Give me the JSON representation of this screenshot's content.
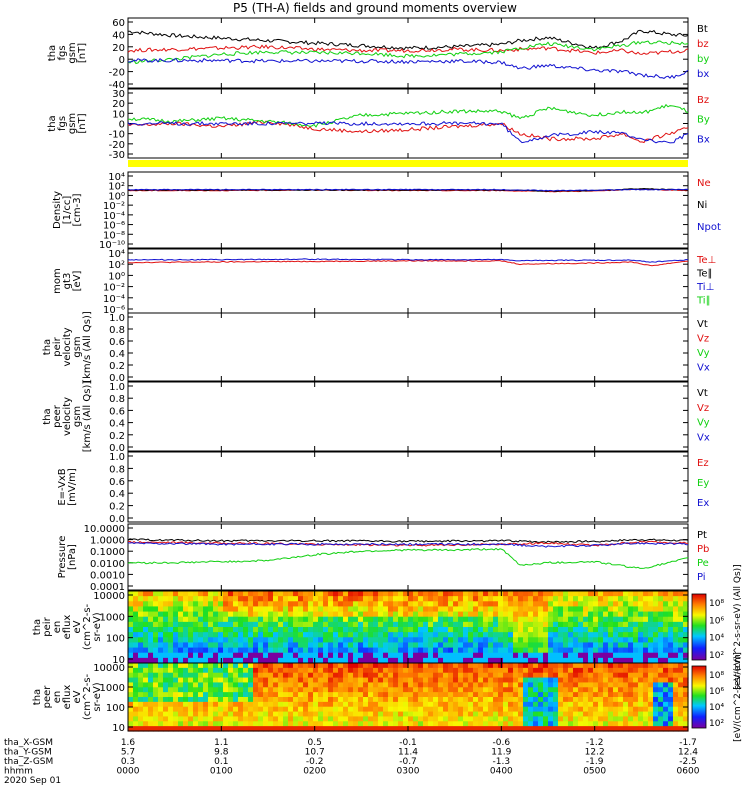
{
  "title": "P5 (TH-A) fields and ground moments overview",
  "date_label": "2020 Sep 01",
  "colors": {
    "black": "#000000",
    "red": "#e01010",
    "green": "#10d010",
    "blue": "#1010d0",
    "yellow": "#ffff00"
  },
  "chart_data": [
    {
      "type": "line",
      "ylabel": [
        "tha",
        "fgs",
        "gsm",
        "[nT]"
      ],
      "ytick_labels": [
        "60",
        "40",
        "20",
        "0",
        "-20",
        "-40"
      ],
      "ylim": [
        -40,
        60
      ],
      "legend": [
        {
          "name": "Bt",
          "color": "black"
        },
        {
          "name": "bz",
          "color": "red"
        },
        {
          "name": "by",
          "color": "green"
        },
        {
          "name": "bx",
          "color": "blue"
        }
      ],
      "series": [
        {
          "name": "Bt",
          "color": "black",
          "x": [
            0,
            50,
            100,
            150,
            200,
            250,
            300,
            350,
            400,
            420,
            450,
            500,
            530,
            550,
            580,
            600
          ],
          "y": [
            45,
            38,
            34,
            30,
            26,
            22,
            18,
            20,
            24,
            30,
            35,
            18,
            30,
            46,
            40,
            38
          ]
        },
        {
          "name": "bz",
          "color": "red",
          "x": [
            0,
            50,
            100,
            150,
            200,
            250,
            300,
            350,
            400,
            420,
            450,
            500,
            530,
            550,
            580,
            600
          ],
          "y": [
            14,
            16,
            18,
            20,
            16,
            14,
            14,
            16,
            14,
            16,
            18,
            10,
            14,
            8,
            12,
            14
          ]
        },
        {
          "name": "by",
          "color": "green",
          "x": [
            0,
            50,
            100,
            150,
            200,
            250,
            300,
            350,
            400,
            420,
            450,
            500,
            530,
            550,
            580,
            600
          ],
          "y": [
            -5,
            0,
            8,
            12,
            10,
            10,
            5,
            8,
            12,
            18,
            25,
            16,
            22,
            28,
            26,
            26
          ]
        },
        {
          "name": "bx",
          "color": "blue",
          "x": [
            0,
            50,
            100,
            150,
            200,
            250,
            300,
            350,
            400,
            420,
            450,
            500,
            530,
            550,
            580,
            600
          ],
          "y": [
            -2,
            -2,
            -2,
            -3,
            -3,
            -3,
            -4,
            -3,
            -5,
            -15,
            -10,
            -18,
            -20,
            -25,
            -30,
            -20
          ]
        }
      ]
    },
    {
      "type": "line",
      "ylabel": [
        "tha",
        "fgs",
        "gsm",
        "[nT]"
      ],
      "ytick_labels": [
        "30",
        "20",
        "10",
        "0",
        "-10",
        "-20",
        "-30"
      ],
      "ylim": [
        -30,
        30
      ],
      "legend": [
        {
          "name": "Bz",
          "color": "red"
        },
        {
          "name": "By",
          "color": "green"
        },
        {
          "name": "Bx",
          "color": "blue"
        }
      ],
      "series": [
        {
          "name": "Bz",
          "color": "red",
          "x": [
            0,
            50,
            100,
            150,
            200,
            250,
            300,
            350,
            400,
            420,
            450,
            500,
            530,
            550,
            580,
            600
          ],
          "y": [
            -2,
            0,
            -3,
            2,
            -5,
            -8,
            -6,
            -3,
            0,
            -10,
            -15,
            -15,
            -10,
            -18,
            -10,
            -5
          ]
        },
        {
          "name": "By",
          "color": "green",
          "x": [
            0,
            50,
            100,
            150,
            200,
            250,
            300,
            350,
            400,
            420,
            450,
            500,
            530,
            550,
            580,
            600
          ],
          "y": [
            5,
            2,
            5,
            2,
            -2,
            8,
            10,
            12,
            12,
            5,
            15,
            8,
            12,
            10,
            18,
            12
          ]
        },
        {
          "name": "Bx",
          "color": "blue",
          "x": [
            0,
            50,
            100,
            150,
            200,
            250,
            300,
            350,
            400,
            420,
            450,
            500,
            530,
            550,
            580,
            600
          ],
          "y": [
            0,
            0,
            0,
            0,
            0,
            0,
            0,
            0,
            0,
            -18,
            -12,
            -8,
            -10,
            -15,
            -20,
            -10
          ]
        }
      ]
    },
    {
      "type": "line",
      "ylabel": [
        "Density",
        "[1/cc]",
        "[cm-3]"
      ],
      "ytick_labels": [
        "10⁴",
        "10²",
        "10⁰",
        "10⁻²",
        "10⁻⁴",
        "10⁻⁶",
        "10⁻⁸",
        "10⁻¹⁰"
      ],
      "ylim_log10": [
        -10,
        4
      ],
      "legend": [
        {
          "name": "Ne",
          "color": "red"
        },
        {
          "name": "Ni",
          "color": "black"
        },
        {
          "name": "Npot",
          "color": "blue"
        }
      ],
      "series": [
        {
          "name": "Ne",
          "color": "red",
          "x": [
            0,
            100,
            200,
            300,
            400,
            450,
            500,
            550,
            600
          ],
          "y_log10": [
            1.0,
            1.0,
            1.1,
            1.0,
            1.0,
            0.8,
            0.9,
            1.3,
            1.0
          ]
        },
        {
          "name": "Ni",
          "color": "black",
          "x": [
            0,
            100,
            200,
            300,
            400,
            450,
            500,
            550,
            600
          ],
          "y_log10": [
            1.1,
            1.1,
            1.1,
            1.1,
            1.1,
            0.9,
            1.0,
            1.4,
            1.1
          ]
        },
        {
          "name": "Npot",
          "color": "blue",
          "x": [
            0,
            100,
            200,
            300,
            400,
            450,
            500,
            550,
            600
          ],
          "y_log10": [
            1.2,
            1.2,
            1.2,
            1.2,
            1.2,
            1.0,
            1.1,
            1.2,
            1.2
          ]
        }
      ]
    },
    {
      "type": "line",
      "ylabel": [
        "mom",
        "gt3",
        "[eV]"
      ],
      "ytick_labels": [
        "10⁴",
        "10²",
        "10⁰",
        "10⁻²",
        "10⁻⁴",
        "10⁻⁶"
      ],
      "ylim_log10": [
        -6,
        4
      ],
      "legend": [
        {
          "name": "Te⊥",
          "color": "red"
        },
        {
          "name": "Te∥",
          "color": "black"
        },
        {
          "name": "Ti⊥",
          "color": "blue"
        },
        {
          "name": "Ti∥",
          "color": "green"
        }
      ],
      "series": [
        {
          "name": "Te⊥",
          "color": "red",
          "x": [
            0,
            100,
            200,
            300,
            400,
            420,
            450,
            500,
            540,
            560,
            600
          ],
          "y_log10": [
            2.3,
            2.4,
            2.5,
            2.6,
            2.6,
            2.0,
            2.1,
            2.2,
            2.4,
            1.7,
            2.6
          ]
        },
        {
          "name": "Ti⊥",
          "color": "blue",
          "x": [
            0,
            100,
            200,
            300,
            400,
            420,
            450,
            500,
            540,
            560,
            600
          ],
          "y_log10": [
            2.8,
            2.8,
            2.9,
            2.8,
            2.8,
            2.6,
            2.7,
            2.7,
            2.7,
            2.4,
            2.8
          ]
        }
      ]
    },
    {
      "type": "line",
      "ylabel": [
        "tha",
        "peir",
        "velocity",
        "gsm",
        "[km/s (All Qs)]"
      ],
      "ytick_labels": [
        "1.0",
        "0.8",
        "0.6",
        "0.4",
        "0.2",
        "0.0"
      ],
      "ylim": [
        0,
        1
      ],
      "legend": [
        {
          "name": "Vt",
          "color": "black"
        },
        {
          "name": "Vz",
          "color": "red"
        },
        {
          "name": "Vy",
          "color": "green"
        },
        {
          "name": "Vx",
          "color": "blue"
        }
      ],
      "series": []
    },
    {
      "type": "line",
      "ylabel": [
        "tha",
        "peer",
        "velocity",
        "gsm",
        "[km/s (All Qs)]"
      ],
      "ytick_labels": [
        "1.0",
        "0.8",
        "0.6",
        "0.4",
        "0.2",
        "0.0"
      ],
      "ylim": [
        0,
        1
      ],
      "legend": [
        {
          "name": "Vt",
          "color": "black"
        },
        {
          "name": "Vz",
          "color": "red"
        },
        {
          "name": "Vy",
          "color": "green"
        },
        {
          "name": "Vx",
          "color": "blue"
        }
      ],
      "series": []
    },
    {
      "type": "line",
      "ylabel": [
        "E=-VxB",
        "[mV/m]"
      ],
      "ytick_labels": [
        "1.0",
        "0.8",
        "0.6",
        "0.4",
        "0.2",
        "0.0"
      ],
      "ylim": [
        0,
        1
      ],
      "legend": [
        {
          "name": "Ez",
          "color": "red"
        },
        {
          "name": "Ey",
          "color": "green"
        },
        {
          "name": "Ex",
          "color": "blue"
        }
      ],
      "series": []
    },
    {
      "type": "line",
      "ylabel": [
        "Pressure",
        "[nPa]"
      ],
      "ytick_labels": [
        "10.0000",
        "1.0000",
        "0.1000",
        "0.0100",
        "0.0010",
        "0.0001"
      ],
      "ylim_log10": [
        -4,
        1
      ],
      "legend": [
        {
          "name": "Pt",
          "color": "black"
        },
        {
          "name": "Pb",
          "color": "red"
        },
        {
          "name": "Pe",
          "color": "green"
        },
        {
          "name": "Pi",
          "color": "blue"
        }
      ],
      "series": [
        {
          "name": "Pt",
          "color": "black",
          "x": [
            0,
            100,
            200,
            300,
            400,
            450,
            500,
            550,
            600
          ],
          "y_log10": [
            0.0,
            -0.1,
            -0.1,
            -0.15,
            -0.1,
            -0.2,
            -0.15,
            0.0,
            -0.1
          ]
        },
        {
          "name": "Pb",
          "color": "red",
          "x": [
            0,
            100,
            200,
            300,
            400,
            450,
            500,
            550,
            600
          ],
          "y_log10": [
            -0.2,
            -0.3,
            -0.4,
            -0.5,
            -0.4,
            -0.3,
            -0.5,
            -0.2,
            -0.3
          ]
        },
        {
          "name": "Pe",
          "color": "green",
          "x": [
            0,
            50,
            100,
            150,
            200,
            250,
            300,
            350,
            400,
            420,
            450,
            500,
            550,
            580,
            600
          ],
          "y_log10": [
            -2.0,
            -2.0,
            -1.9,
            -1.8,
            -1.3,
            -1.0,
            -0.9,
            -0.9,
            -0.8,
            -2.2,
            -2.0,
            -1.9,
            -2.5,
            -2.0,
            -1.6
          ]
        },
        {
          "name": "Pi",
          "color": "blue",
          "x": [
            0,
            100,
            200,
            300,
            400,
            450,
            500,
            550,
            600
          ],
          "y_log10": [
            -0.3,
            -0.4,
            -0.4,
            -0.4,
            -0.4,
            -0.6,
            -0.5,
            -0.3,
            -0.4
          ]
        }
      ]
    },
    {
      "type": "heatmap",
      "ylabel": [
        "tha",
        "peir",
        "en",
        "eflux",
        "eV",
        "(cm^2-s-",
        "sr-eV)"
      ],
      "ytick_labels": [
        "10000",
        "1000",
        "100",
        "10"
      ],
      "colorbar_label": "[eV/(cm^2-s-sr-eV) (All Qs)]",
      "colorbar_ticks": [
        "10⁸",
        "10⁶",
        "10⁴",
        "10²"
      ]
    },
    {
      "type": "heatmap",
      "ylabel": [
        "tha",
        "peer",
        "en",
        "eflux",
        "eV",
        "(cm^2-s-",
        "sr-eV)"
      ],
      "ytick_labels": [
        "10000",
        "1000",
        "100",
        "10"
      ],
      "colorbar_label": "[eV/(cm^2-s-sr-eV)]",
      "colorbar_ticks": [
        "10⁸",
        "10⁶",
        "10⁴",
        "10²"
      ]
    }
  ],
  "x_axis": {
    "row_labels": [
      "tha_X-GSM",
      "tha_Y-GSM",
      "tha_Z-GSM",
      "hhmm"
    ],
    "columns": [
      [
        "1.6",
        "5.7",
        "0.3",
        "0000"
      ],
      [
        "1.1",
        "9.8",
        "0.1",
        "0100"
      ],
      [
        "0.5",
        "10.7",
        "-0.2",
        "0200"
      ],
      [
        "-0.1",
        "11.4",
        "-0.7",
        "0300"
      ],
      [
        "-0.6",
        "11.9",
        "-1.3",
        "0400"
      ],
      [
        "-1.2",
        "12.2",
        "-1.9",
        "0500"
      ],
      [
        "-1.7",
        "12.4",
        "-2.5",
        "0600"
      ]
    ]
  }
}
